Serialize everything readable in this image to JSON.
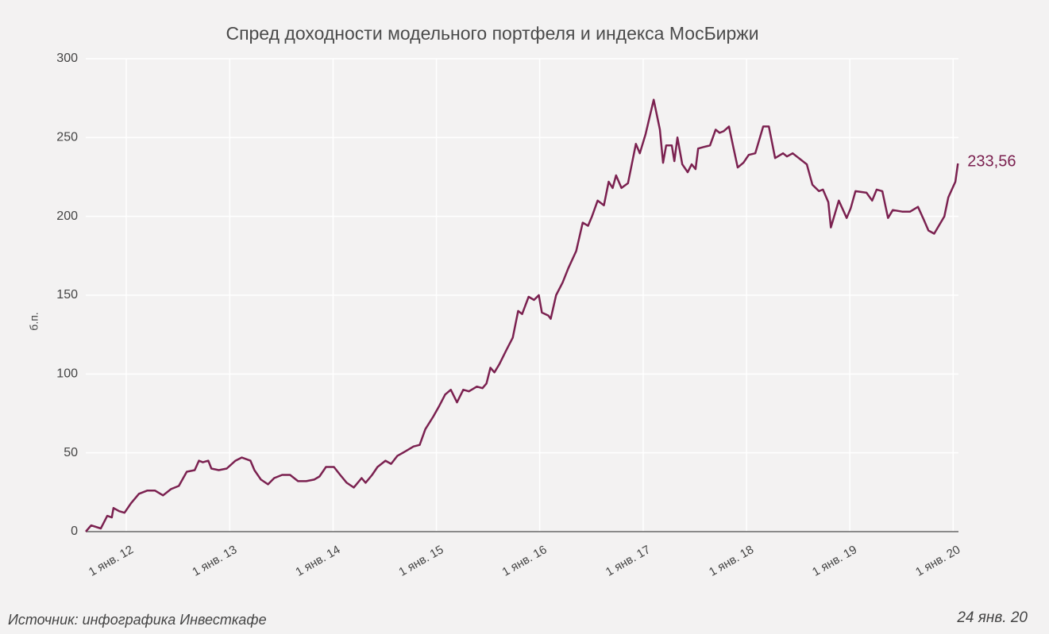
{
  "chart_data": {
    "type": "line",
    "title": "Спред доходности модельного портфеля и индекса МосБиржи",
    "ylabel": "б.п.",
    "source": "Источник: инфографика Инвесткафе",
    "date_note": "24 янв. 20",
    "grid": true,
    "xlim": [
      "2011-08-11",
      "2020-01-20"
    ],
    "ylim": [
      0,
      300
    ],
    "yticks": [
      0,
      50,
      100,
      150,
      200,
      250,
      300
    ],
    "xticks": [
      {
        "value": "2012-01-01",
        "label": "1 янв. 12"
      },
      {
        "value": "2013-01-01",
        "label": "1 янв. 13"
      },
      {
        "value": "2014-01-01",
        "label": "1 янв. 14"
      },
      {
        "value": "2015-01-01",
        "label": "1 янв. 15"
      },
      {
        "value": "2016-01-01",
        "label": "1 янв. 16"
      },
      {
        "value": "2017-01-01",
        "label": "1 янв. 17"
      },
      {
        "value": "2018-01-01",
        "label": "1 янв. 18"
      },
      {
        "value": "2019-01-01",
        "label": "1 янв. 19"
      },
      {
        "value": "2020-01-01",
        "label": "1 янв. 20"
      }
    ],
    "x": [
      "2011-08-11",
      "2011-08-30",
      "2011-10-03",
      "2011-10-26",
      "2011-11-11",
      "2011-11-17",
      "2011-12-07",
      "2011-12-26",
      "2012-01-18",
      "2012-02-15",
      "2012-03-15",
      "2012-04-12",
      "2012-05-10",
      "2012-06-07",
      "2012-07-05",
      "2012-08-02",
      "2012-08-30",
      "2012-09-14",
      "2012-09-28",
      "2012-10-17",
      "2012-10-28",
      "2012-11-23",
      "2012-12-21",
      "2013-01-21",
      "2013-02-12",
      "2013-03-15",
      "2013-03-29",
      "2013-04-21",
      "2013-05-16",
      "2013-06-07",
      "2013-07-05",
      "2013-08-02",
      "2013-08-30",
      "2013-09-28",
      "2013-10-26",
      "2013-11-14",
      "2013-12-07",
      "2014-01-04",
      "2014-01-26",
      "2014-02-18",
      "2014-03-15",
      "2014-04-12",
      "2014-04-26",
      "2014-05-19",
      "2014-06-07",
      "2014-07-05",
      "2014-07-25",
      "2014-08-16",
      "2014-09-14",
      "2014-10-12",
      "2014-11-03",
      "2014-11-23",
      "2014-12-21",
      "2015-01-12",
      "2015-02-01",
      "2015-02-21",
      "2015-03-15",
      "2015-04-06",
      "2015-04-26",
      "2015-05-24",
      "2015-06-13",
      "2015-06-27",
      "2015-07-11",
      "2015-07-25",
      "2015-08-11",
      "2015-09-05",
      "2015-09-28",
      "2015-10-17",
      "2015-10-31",
      "2015-11-23",
      "2015-12-12",
      "2015-12-29",
      "2016-01-09",
      "2016-02-01",
      "2016-02-09",
      "2016-02-28",
      "2016-03-22",
      "2016-04-11",
      "2016-05-09",
      "2016-06-01",
      "2016-06-20",
      "2016-07-04",
      "2016-07-24",
      "2016-08-15",
      "2016-09-01",
      "2016-09-15",
      "2016-09-27",
      "2016-10-16",
      "2016-11-08",
      "2016-12-06",
      "2016-12-20",
      "2017-01-09",
      "2017-02-07",
      "2017-03-01",
      "2017-03-12",
      "2017-03-23",
      "2017-04-12",
      "2017-04-21",
      "2017-05-02",
      "2017-05-19",
      "2017-06-07",
      "2017-06-21",
      "2017-07-05",
      "2017-07-14",
      "2017-08-02",
      "2017-08-25",
      "2017-09-14",
      "2017-09-28",
      "2017-10-12",
      "2017-10-31",
      "2017-11-14",
      "2017-12-01",
      "2017-12-21",
      "2018-01-09",
      "2018-02-01",
      "2018-03-01",
      "2018-03-21",
      "2018-04-12",
      "2018-05-10",
      "2018-05-24",
      "2018-06-13",
      "2018-08-02",
      "2018-08-22",
      "2018-09-14",
      "2018-09-28",
      "2018-10-17",
      "2018-10-26",
      "2018-11-23",
      "2018-12-21",
      "2019-01-04",
      "2019-01-21",
      "2019-03-01",
      "2019-03-21",
      "2019-04-06",
      "2019-04-26",
      "2019-05-16",
      "2019-06-02",
      "2019-07-05",
      "2019-08-02",
      "2019-08-30",
      "2019-09-19",
      "2019-10-06",
      "2019-10-26",
      "2019-12-01",
      "2019-12-15",
      "2020-01-09",
      "2020-01-18"
    ],
    "series": [
      {
        "name": "Спред",
        "color": "#7b2150",
        "values": [
          0,
          4,
          2,
          10,
          9,
          15,
          13,
          12,
          18,
          24,
          26,
          26,
          23,
          27,
          29,
          38,
          39,
          45,
          44,
          45,
          40,
          39,
          40,
          45,
          47,
          45,
          39,
          33,
          30,
          34,
          36,
          36,
          32,
          32,
          33,
          35,
          41,
          41,
          36,
          31,
          28,
          34,
          31,
          36,
          41,
          45,
          43,
          48,
          51,
          54,
          55,
          65,
          73,
          80,
          87,
          90,
          82,
          90,
          89,
          92,
          91,
          94,
          104,
          101,
          106,
          115,
          123,
          140,
          138,
          149,
          147,
          150,
          139,
          137,
          135,
          150,
          158,
          167,
          178,
          196,
          194,
          200,
          210,
          207,
          222,
          218,
          226,
          218,
          221,
          246,
          240,
          252,
          274,
          255,
          234,
          245,
          245,
          235,
          250,
          233,
          228,
          233,
          230,
          243,
          244,
          245,
          255,
          253,
          254,
          257,
          245,
          231,
          234,
          239,
          240,
          257,
          257,
          237,
          240,
          238,
          240,
          233,
          220,
          216,
          217,
          209,
          193,
          210,
          199,
          205,
          216,
          215,
          210,
          217,
          216,
          199,
          204,
          203,
          203,
          206,
          198,
          191,
          189,
          200,
          212,
          222,
          233.56
        ]
      }
    ],
    "annotations": [
      {
        "text": "233,56",
        "x": "2020-01-18",
        "y": 233.56
      }
    ]
  }
}
